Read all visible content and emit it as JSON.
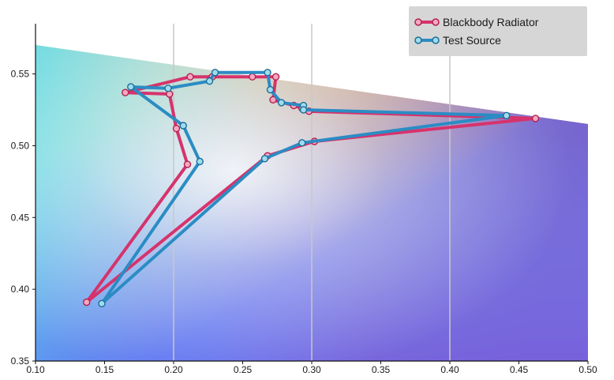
{
  "chart_data": {
    "type": "line",
    "xlim": [
      0.1,
      0.5
    ],
    "ylim": [
      0.35,
      0.585
    ],
    "x_ticks": [
      "0.10",
      "0.15",
      "0.20",
      "0.25",
      "0.30",
      "0.35",
      "0.40",
      "0.45",
      "0.50"
    ],
    "x_tick_values": [
      0.1,
      0.15,
      0.2,
      0.25,
      0.3,
      0.35,
      0.4,
      0.45,
      0.5
    ],
    "y_ticks": [
      "0.35",
      "0.40",
      "0.45",
      "0.50",
      "0.55"
    ],
    "y_tick_values": [
      0.35,
      0.4,
      0.45,
      0.5,
      0.55
    ],
    "grid": "vertical",
    "background": "chromaticity gamut gradient",
    "legend_position": "top-right",
    "series": [
      {
        "name": "Blackbody Radiator",
        "color": "#d6336c",
        "x": [
          0.137,
          0.21,
          0.202,
          0.197,
          0.165,
          0.212,
          0.228,
          0.257,
          0.274,
          0.272,
          0.287,
          0.293,
          0.298,
          0.462,
          0.302,
          0.268
        ],
        "y": [
          0.391,
          0.487,
          0.512,
          0.536,
          0.537,
          0.548,
          0.548,
          0.548,
          0.548,
          0.532,
          0.528,
          0.526,
          0.524,
          0.519,
          0.503,
          0.493
        ]
      },
      {
        "name": "Test Source",
        "color": "#2b8cc4",
        "x": [
          0.148,
          0.219,
          0.207,
          0.169,
          0.196,
          0.226,
          0.23,
          0.268,
          0.27,
          0.278,
          0.294,
          0.294,
          0.441,
          0.293,
          0.266
        ],
        "y": [
          0.39,
          0.489,
          0.514,
          0.541,
          0.54,
          0.545,
          0.551,
          0.551,
          0.539,
          0.53,
          0.528,
          0.525,
          0.521,
          0.502,
          0.491
        ]
      }
    ]
  }
}
